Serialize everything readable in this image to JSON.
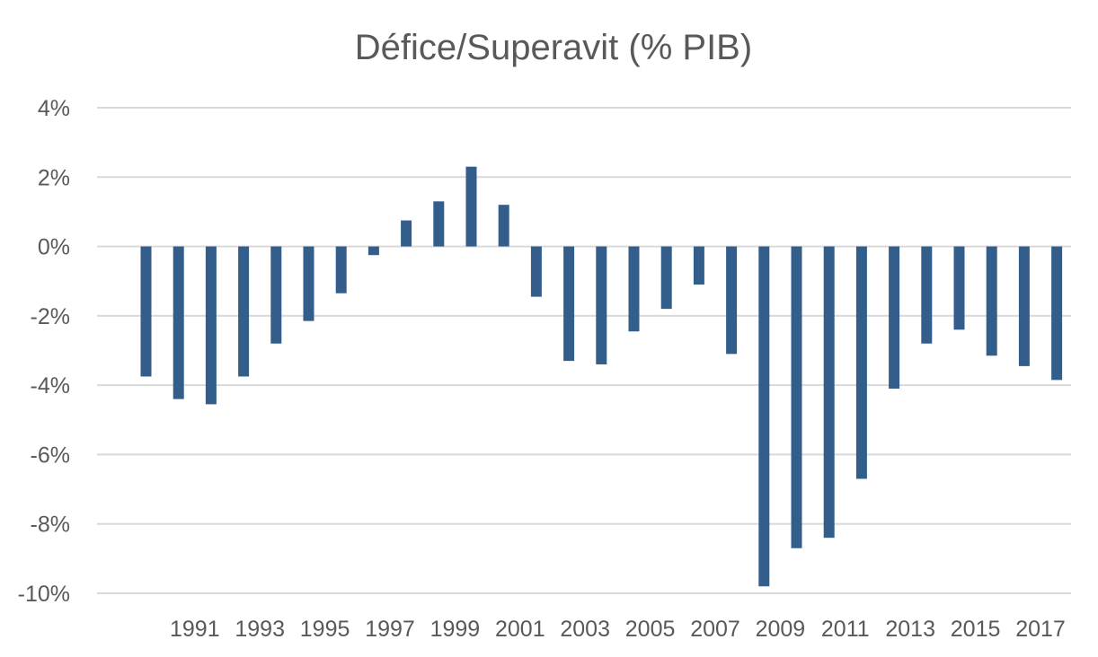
{
  "chart_data": {
    "type": "bar",
    "title": "Défice/Superavit (% PIB)",
    "xlabel": "",
    "ylabel": "",
    "ylim": [
      -10,
      4
    ],
    "y_ticks": [
      4,
      2,
      0,
      -2,
      -4,
      -6,
      -8,
      -10
    ],
    "y_tick_labels": [
      "4%",
      "2%",
      "0%",
      "-2%",
      "-4%",
      "-6%",
      "-8%",
      "-10%"
    ],
    "categories": [
      1990,
      1991,
      1992,
      1993,
      1994,
      1995,
      1996,
      1997,
      1998,
      1999,
      2000,
      2001,
      2002,
      2003,
      2004,
      2005,
      2006,
      2007,
      2008,
      2009,
      2010,
      2011,
      2012,
      2013,
      2014,
      2015,
      2016,
      2017,
      2018
    ],
    "x_tick_labels": [
      "1991",
      "1993",
      "1995",
      "1997",
      "1999",
      "2001",
      "2003",
      "2005",
      "2007",
      "2009",
      "2011",
      "2013",
      "2015",
      "2017"
    ],
    "values": [
      -3.75,
      -4.4,
      -4.55,
      -3.75,
      -2.8,
      -2.15,
      -1.35,
      -0.25,
      0.75,
      1.3,
      2.3,
      1.2,
      -1.45,
      -3.3,
      -3.4,
      -2.45,
      -1.8,
      -1.1,
      -3.1,
      -9.8,
      -8.7,
      -8.4,
      -6.7,
      -4.1,
      -2.8,
      -2.4,
      -3.15,
      -3.45,
      -3.85
    ],
    "bar_color": "#335E8C",
    "grid": true,
    "legend": "none"
  }
}
